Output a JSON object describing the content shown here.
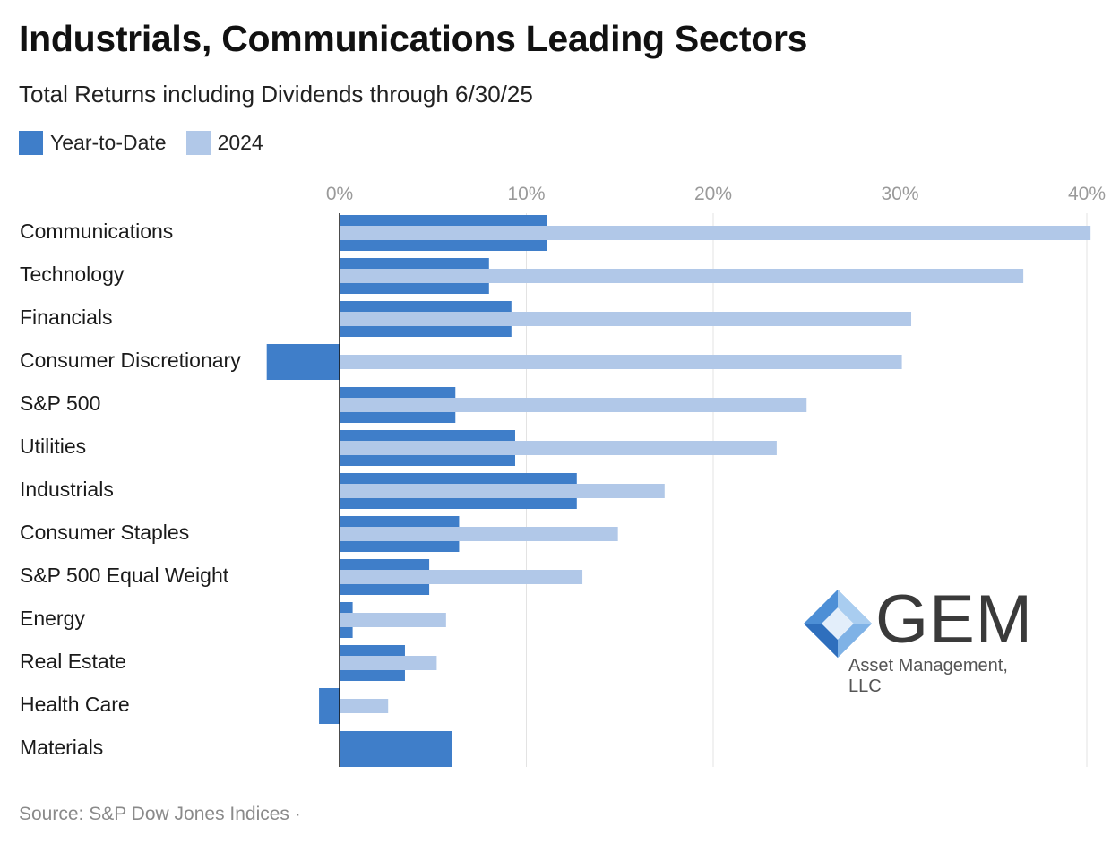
{
  "title": "Industrials, Communications Leading Sectors",
  "subtitle": "Total Returns including Dividends through 6/30/25",
  "source": "Source: S&P Dow Jones Indices ·",
  "logo": {
    "mark": "GEM",
    "subtext": "Asset Management, LLC"
  },
  "colors": {
    "ytd": "#3f7ec9",
    "y2024": "#b1c8e8"
  },
  "chart_data": {
    "type": "bar",
    "orientation": "horizontal",
    "categories": [
      "Communications",
      "Technology",
      "Financials",
      "Consumer Discretionary",
      "S&P 500",
      "Utilities",
      "Industrials",
      "Consumer Staples",
      "S&P 500 Equal Weight",
      "Energy",
      "Real Estate",
      "Health Care",
      "Materials"
    ],
    "series": [
      {
        "name": "Year-to-Date",
        "values": [
          11.1,
          8.0,
          9.2,
          -3.9,
          6.2,
          9.4,
          12.7,
          6.4,
          4.8,
          0.7,
          3.5,
          -1.1,
          6.0
        ]
      },
      {
        "name": "2024",
        "values": [
          40.2,
          36.6,
          30.6,
          30.1,
          25.0,
          23.4,
          17.4,
          14.9,
          13.0,
          5.7,
          5.2,
          2.6,
          0
        ]
      }
    ],
    "xlim": [
      -3.9,
      40.2
    ],
    "ticks": [
      "0%",
      "10%",
      "20%",
      "30%",
      "40%"
    ],
    "tick_values": [
      0,
      10,
      20,
      30,
      40
    ],
    "grid": true,
    "legend_position": "top-left"
  }
}
